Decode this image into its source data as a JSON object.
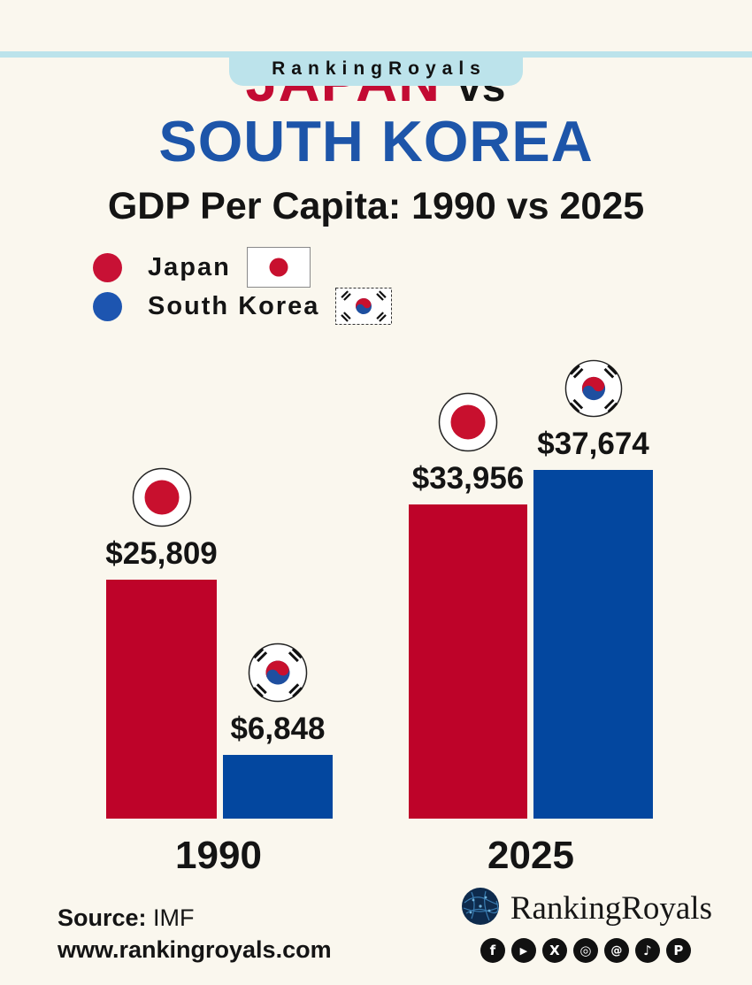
{
  "banner": {
    "brand": "RankingRoyals"
  },
  "title": {
    "part_red": "JAPAN",
    "vs": "vs",
    "part_blue": "SOUTH KOREA"
  },
  "subtitle": "GDP Per Capita: 1990 vs 2025",
  "legend": [
    {
      "label": "Japan",
      "dot_color": "#C81135",
      "flag": "japan-flag"
    },
    {
      "label": "South Korea",
      "dot_color": "#1D55B0",
      "flag": "south-korea-flag"
    }
  ],
  "chart_data": {
    "type": "bar",
    "title": "GDP Per Capita: 1990 vs 2025",
    "categories": [
      "1990",
      "2025"
    ],
    "series": [
      {
        "name": "Japan",
        "color": "#BE0329",
        "values": [
          25809,
          33956
        ],
        "value_labels": [
          "$25,809",
          "$33,956"
        ]
      },
      {
        "name": "South Korea",
        "color": "#03479F",
        "values": [
          6848,
          37674
        ],
        "value_labels": [
          "$6,848",
          "$37,674"
        ]
      }
    ],
    "ylim": [
      0,
      40000
    ],
    "unit": "USD",
    "grid": false,
    "legend_position": "top-left",
    "bar_markers": [
      "japan-flag-badge",
      "south-korea-flag-badge"
    ]
  },
  "colors": {
    "background": "#FAF7EE",
    "banner": "#BCE3EB",
    "title_red": "#C30B33",
    "title_blue": "#1D55A9",
    "bar_red": "#BE0329",
    "bar_blue": "#03479F",
    "text": "#141414"
  },
  "footer": {
    "source_label": "Source:",
    "source_value": "IMF",
    "website": "www.rankingroyals.com",
    "brand": "RankingRoyals",
    "social": [
      {
        "name": "facebook",
        "glyph": "f"
      },
      {
        "name": "youtube",
        "glyph": "▶"
      },
      {
        "name": "x",
        "glyph": "X"
      },
      {
        "name": "instagram",
        "glyph": "◎"
      },
      {
        "name": "threads",
        "glyph": "@"
      },
      {
        "name": "tiktok",
        "glyph": "♪"
      },
      {
        "name": "pinterest",
        "glyph": "P"
      }
    ]
  }
}
